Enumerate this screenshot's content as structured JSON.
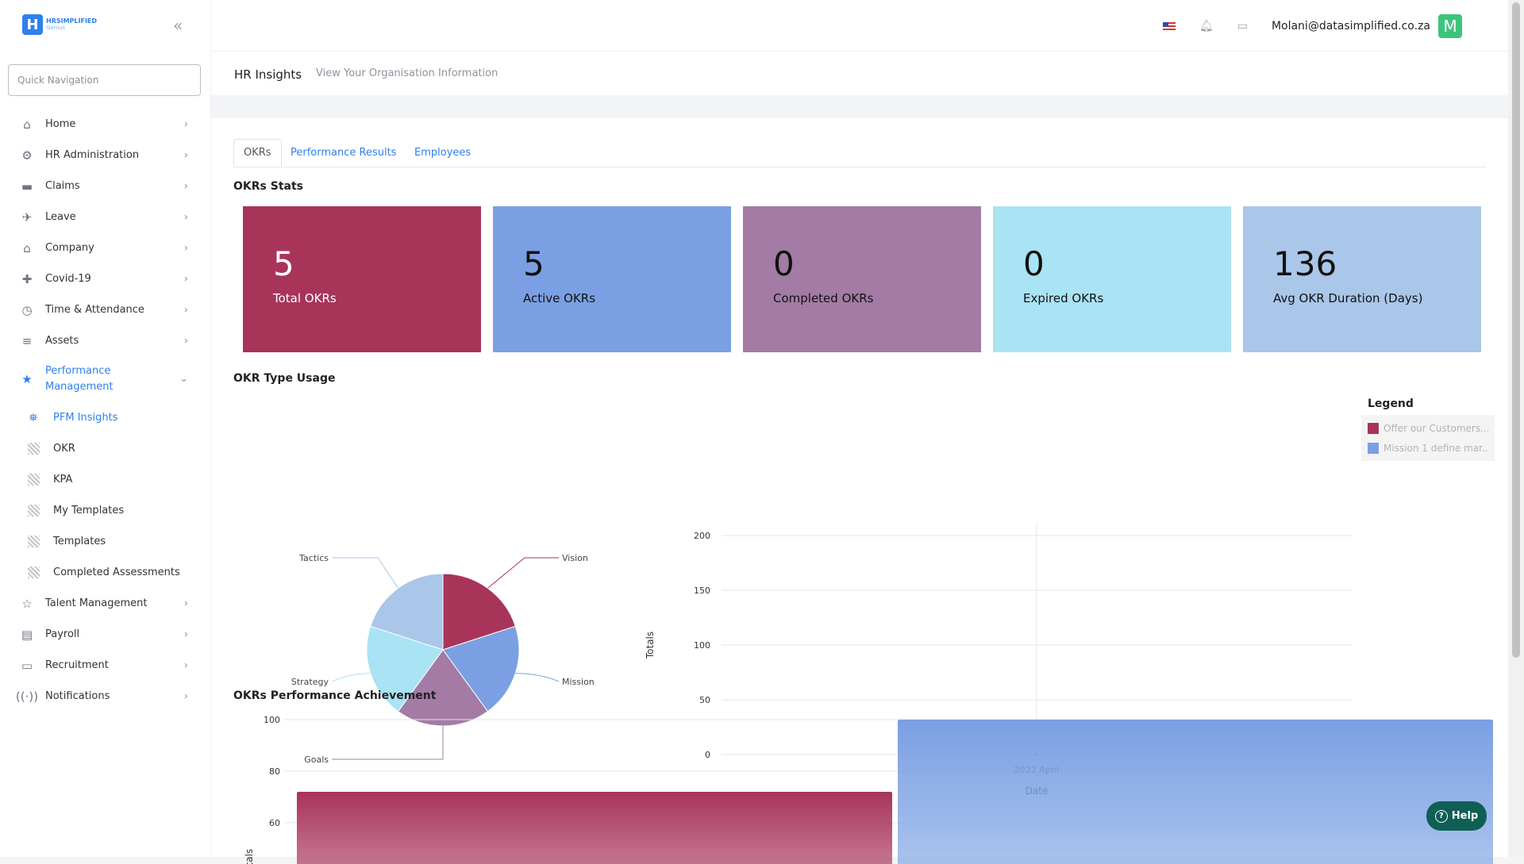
{
  "logo": {
    "brand": "HRSIMPLIFIED",
    "sub": "Genius"
  },
  "sidebar": {
    "search_placeholder": "Quick Navigation",
    "items": [
      {
        "label": "Home",
        "icon": "home-icon"
      },
      {
        "label": "HR Administration",
        "icon": "user-cog-icon"
      },
      {
        "label": "Claims",
        "icon": "wallet-icon"
      },
      {
        "label": "Leave",
        "icon": "plane-icon"
      },
      {
        "label": "Company",
        "icon": "building-icon"
      },
      {
        "label": "Covid-19",
        "icon": "ambulance-icon"
      },
      {
        "label": "Time & Attendance",
        "icon": "clock-icon"
      },
      {
        "label": "Assets",
        "icon": "list-icon"
      },
      {
        "label": "Performance Management",
        "icon": "star-icon"
      },
      {
        "label": "Talent Management",
        "icon": "star-outline-icon"
      },
      {
        "label": "Payroll",
        "icon": "receipt-icon"
      },
      {
        "label": "Recruitment",
        "icon": "id-card-icon"
      },
      {
        "label": "Notifications",
        "icon": "broadcast-icon"
      }
    ],
    "sub_items": [
      {
        "label": "PFM Insights",
        "icon": "binoculars-icon"
      },
      {
        "label": "OKR",
        "icon": "pattern-icon"
      },
      {
        "label": "KPA",
        "icon": "pattern-icon"
      },
      {
        "label": "My Templates",
        "icon": "pattern-icon"
      },
      {
        "label": "Templates",
        "icon": "pattern-icon"
      },
      {
        "label": "Completed Assessments",
        "icon": "pattern-icon"
      }
    ]
  },
  "topbar": {
    "email": "Molani@datasimplified.co.za",
    "avatar_letter": "M"
  },
  "page": {
    "title": "HR Insights",
    "subtitle": "View Your Organisation Information"
  },
  "tabs": [
    "OKRs",
    "Performance Results",
    "Employees"
  ],
  "okr_stats": {
    "heading": "OKRs Stats",
    "cards": [
      {
        "value": "5",
        "label": "Total OKRs",
        "color": "#a8345a"
      },
      {
        "value": "5",
        "label": "Active OKRs",
        "color": "#7aa0e3"
      },
      {
        "value": "0",
        "label": "Completed OKRs",
        "color": "#a37ba5"
      },
      {
        "value": "0",
        "label": "Expired OKRs",
        "color": "#a9e3f4"
      },
      {
        "value": "136",
        "label": "Avg OKR Duration (Days)",
        "color": "#aac6e9"
      }
    ]
  },
  "okr_type_usage": {
    "heading": "OKR Type Usage"
  },
  "performance": {
    "heading": "OKRs Performance Achievement"
  },
  "legend": {
    "title": "Legend"
  },
  "help": {
    "label": "Help"
  },
  "chart_data": [
    {
      "type": "pie",
      "slices": [
        {
          "name": "Vision",
          "value": 1,
          "color": "#a8345a"
        },
        {
          "name": "Mission",
          "value": 1,
          "color": "#7aa0e3"
        },
        {
          "name": "Goals",
          "value": 1,
          "color": "#a37ba5"
        },
        {
          "name": "Strategy",
          "value": 1,
          "color": "#a9e3f4"
        },
        {
          "name": "Tactics",
          "value": 1,
          "color": "#aac6e9"
        }
      ]
    },
    {
      "type": "line",
      "categories": [
        "2022 April"
      ],
      "xlabel": "Date",
      "ylabel": "Totals",
      "ylim": [
        0,
        200
      ],
      "yticks": [
        0,
        50,
        100,
        150,
        200
      ],
      "series": [
        {
          "name": "Offer our Customers...",
          "color": "#a8345a",
          "values": [
            0
          ]
        },
        {
          "name": "Mission 1 define mar...",
          "color": "#7aa0e3",
          "values": [
            0
          ]
        }
      ]
    },
    {
      "type": "bar",
      "yticks": [
        60,
        80,
        100
      ],
      "ylabel": "Totals",
      "ylim": [
        0,
        100
      ],
      "series": [
        {
          "value": 72,
          "color": "#a8345a"
        },
        {
          "value": 100,
          "color": "#7aa0e3"
        }
      ]
    }
  ]
}
